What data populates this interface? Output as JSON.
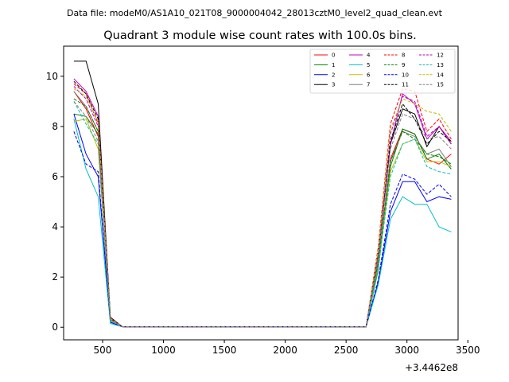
{
  "header": {
    "file_label": "Data file: modeM0/AS1A10_021T08_9000004042_28013cztM0_level2_quad_clean.evt",
    "title": "Quadrant 3 module wise count rates with 100.0s bins."
  },
  "chart_data": {
    "type": "line",
    "x_offset_label": "+3.4462e8",
    "x_ticks": [
      "500",
      "1000",
      "1500",
      "2000",
      "2500",
      "3000",
      "3500"
    ],
    "y_ticks": [
      "0",
      "2",
      "4",
      "6",
      "8",
      "10"
    ],
    "xlim": [
      180,
      3420
    ],
    "ylim": [
      -0.5,
      11.2
    ],
    "grid": false,
    "legend_position": "top-right",
    "legend_columns": 4,
    "x": [
      264,
      364,
      464,
      564,
      664,
      764,
      864,
      964,
      1064,
      1164,
      1264,
      1364,
      1464,
      1564,
      1664,
      1764,
      1864,
      1964,
      2064,
      2164,
      2264,
      2364,
      2464,
      2564,
      2664,
      2764,
      2864,
      2964,
      3064,
      3164,
      3264,
      3364
    ],
    "series": [
      {
        "name": "0",
        "color": "#ff0000",
        "dash": "solid",
        "values": [
          9.4,
          8.7,
          7.6,
          0.3,
          0.02,
          0.02,
          0.02,
          0.02,
          0.02,
          0.02,
          0.02,
          0.02,
          0.02,
          0.02,
          0.02,
          0.02,
          0.02,
          0.02,
          0.02,
          0.02,
          0.02,
          0.02,
          0.02,
          0.02,
          0.02,
          2.5,
          6.7,
          7.9,
          7.7,
          6.7,
          6.5,
          6.9
        ]
      },
      {
        "name": "1",
        "color": "#008000",
        "dash": "solid",
        "values": [
          8.5,
          8.4,
          7.7,
          0.25,
          0.02,
          0.02,
          0.02,
          0.02,
          0.02,
          0.02,
          0.02,
          0.02,
          0.02,
          0.02,
          0.02,
          0.02,
          0.02,
          0.02,
          0.02,
          0.02,
          0.02,
          0.02,
          0.02,
          0.02,
          0.02,
          2.3,
          6.4,
          7.9,
          7.7,
          6.7,
          6.9,
          6.3
        ]
      },
      {
        "name": "2",
        "color": "#0000ff",
        "dash": "solid",
        "values": [
          8.5,
          6.9,
          6.0,
          0.2,
          0.02,
          0.02,
          0.02,
          0.02,
          0.02,
          0.02,
          0.02,
          0.02,
          0.02,
          0.02,
          0.02,
          0.02,
          0.02,
          0.02,
          0.02,
          0.02,
          0.02,
          0.02,
          0.02,
          0.02,
          0.02,
          1.8,
          4.6,
          5.8,
          5.8,
          5.0,
          5.2,
          5.1
        ]
      },
      {
        "name": "3",
        "color": "#000000",
        "dash": "solid",
        "values": [
          10.6,
          10.6,
          8.9,
          0.4,
          0.02,
          0.02,
          0.02,
          0.02,
          0.02,
          0.02,
          0.02,
          0.02,
          0.02,
          0.02,
          0.02,
          0.02,
          0.02,
          0.02,
          0.02,
          0.02,
          0.02,
          0.02,
          0.02,
          0.02,
          0.02,
          2.9,
          7.3,
          8.7,
          8.5,
          7.2,
          8.0,
          7.3
        ]
      },
      {
        "name": "4",
        "color": "#c000c0",
        "dash": "solid",
        "values": [
          9.9,
          9.4,
          8.4,
          0.35,
          0.02,
          0.02,
          0.02,
          0.02,
          0.02,
          0.02,
          0.02,
          0.02,
          0.02,
          0.02,
          0.02,
          0.02,
          0.02,
          0.02,
          0.02,
          0.02,
          0.02,
          0.02,
          0.02,
          0.02,
          0.02,
          2.8,
          7.3,
          9.3,
          8.9,
          7.5,
          8.0,
          7.4
        ]
      },
      {
        "name": "5",
        "color": "#00bfbf",
        "dash": "solid",
        "values": [
          8.3,
          6.3,
          5.2,
          0.15,
          0.02,
          0.02,
          0.02,
          0.02,
          0.02,
          0.02,
          0.02,
          0.02,
          0.02,
          0.02,
          0.02,
          0.02,
          0.02,
          0.02,
          0.02,
          0.02,
          0.02,
          0.02,
          0.02,
          0.02,
          0.02,
          1.7,
          4.3,
          5.2,
          4.9,
          4.9,
          4.0,
          3.8
        ]
      },
      {
        "name": "6",
        "color": "#bfbf00",
        "dash": "solid",
        "values": [
          8.2,
          8.3,
          7.1,
          0.25,
          0.02,
          0.02,
          0.02,
          0.02,
          0.02,
          0.02,
          0.02,
          0.02,
          0.02,
          0.02,
          0.02,
          0.02,
          0.02,
          0.02,
          0.02,
          0.02,
          0.02,
          0.02,
          0.02,
          0.02,
          0.02,
          2.4,
          6.2,
          7.3,
          7.5,
          6.6,
          6.6,
          6.4
        ]
      },
      {
        "name": "7",
        "color": "#808080",
        "dash": "solid",
        "values": [
          9.4,
          8.8,
          7.8,
          0.3,
          0.02,
          0.02,
          0.02,
          0.02,
          0.02,
          0.02,
          0.02,
          0.02,
          0.02,
          0.02,
          0.02,
          0.02,
          0.02,
          0.02,
          0.02,
          0.02,
          0.02,
          0.02,
          0.02,
          0.02,
          0.02,
          2.6,
          6.6,
          7.8,
          7.6,
          6.9,
          7.1,
          6.4
        ]
      },
      {
        "name": "8",
        "color": "#ff0000",
        "dash": "dashed",
        "values": [
          9.7,
          9.3,
          8.1,
          0.35,
          0.02,
          0.02,
          0.02,
          0.02,
          0.02,
          0.02,
          0.02,
          0.02,
          0.02,
          0.02,
          0.02,
          0.02,
          0.02,
          0.02,
          0.02,
          0.02,
          0.02,
          0.02,
          0.02,
          0.02,
          0.02,
          3.2,
          8.1,
          9.5,
          9.4,
          7.8,
          8.3,
          7.5
        ]
      },
      {
        "name": "9",
        "color": "#008000",
        "dash": "dashed",
        "values": [
          9.1,
          8.8,
          7.8,
          0.3,
          0.02,
          0.02,
          0.02,
          0.02,
          0.02,
          0.02,
          0.02,
          0.02,
          0.02,
          0.02,
          0.02,
          0.02,
          0.02,
          0.02,
          0.02,
          0.02,
          0.02,
          0.02,
          0.02,
          0.02,
          0.02,
          2.6,
          6.6,
          7.8,
          7.5,
          6.9,
          6.8,
          6.5
        ]
      },
      {
        "name": "10",
        "color": "#0000ff",
        "dash": "dashed",
        "values": [
          7.8,
          6.5,
          6.2,
          0.2,
          0.02,
          0.02,
          0.02,
          0.02,
          0.02,
          0.02,
          0.02,
          0.02,
          0.02,
          0.02,
          0.02,
          0.02,
          0.02,
          0.02,
          0.02,
          0.02,
          0.02,
          0.02,
          0.02,
          0.02,
          0.02,
          1.9,
          4.9,
          6.1,
          5.9,
          5.3,
          5.7,
          5.2
        ]
      },
      {
        "name": "11",
        "color": "#000000",
        "dash": "dashed",
        "values": [
          9.8,
          9.3,
          8.3,
          0.35,
          0.02,
          0.02,
          0.02,
          0.02,
          0.02,
          0.02,
          0.02,
          0.02,
          0.02,
          0.02,
          0.02,
          0.02,
          0.02,
          0.02,
          0.02,
          0.02,
          0.02,
          0.02,
          0.02,
          0.02,
          0.02,
          2.9,
          7.4,
          8.9,
          8.3,
          7.3,
          7.8,
          7.4
        ]
      },
      {
        "name": "12",
        "color": "#c000c0",
        "dash": "dashed",
        "values": [
          9.6,
          9.1,
          8.0,
          0.35,
          0.02,
          0.02,
          0.02,
          0.02,
          0.02,
          0.02,
          0.02,
          0.02,
          0.02,
          0.02,
          0.02,
          0.02,
          0.02,
          0.02,
          0.02,
          0.02,
          0.02,
          0.02,
          0.02,
          0.02,
          0.02,
          3.0,
          7.7,
          9.2,
          9.0,
          7.6,
          8.0,
          7.3
        ]
      },
      {
        "name": "13",
        "color": "#00bfbf",
        "dash": "dashed",
        "values": [
          9.0,
          8.1,
          7.3,
          0.25,
          0.02,
          0.02,
          0.02,
          0.02,
          0.02,
          0.02,
          0.02,
          0.02,
          0.02,
          0.02,
          0.02,
          0.02,
          0.02,
          0.02,
          0.02,
          0.02,
          0.02,
          0.02,
          0.02,
          0.02,
          0.02,
          2.4,
          6.0,
          7.3,
          7.5,
          6.4,
          6.2,
          6.1
        ]
      },
      {
        "name": "14",
        "color": "#bfbf00",
        "dash": "dashed",
        "values": [
          9.5,
          9.2,
          8.2,
          0.35,
          0.02,
          0.02,
          0.02,
          0.02,
          0.02,
          0.02,
          0.02,
          0.02,
          0.02,
          0.02,
          0.02,
          0.02,
          0.02,
          0.02,
          0.02,
          0.02,
          0.02,
          0.02,
          0.02,
          0.02,
          0.02,
          3.1,
          7.9,
          9.1,
          8.9,
          8.6,
          8.5,
          7.8
        ]
      },
      {
        "name": "15",
        "color": "#808080",
        "dash": "dashed",
        "values": [
          9.0,
          8.4,
          7.4,
          0.3,
          0.02,
          0.02,
          0.02,
          0.02,
          0.02,
          0.02,
          0.02,
          0.02,
          0.02,
          0.02,
          0.02,
          0.02,
          0.02,
          0.02,
          0.02,
          0.02,
          0.02,
          0.02,
          0.02,
          0.02,
          0.02,
          2.8,
          7.1,
          8.5,
          8.3,
          7.5,
          7.6,
          7.1
        ]
      }
    ]
  }
}
